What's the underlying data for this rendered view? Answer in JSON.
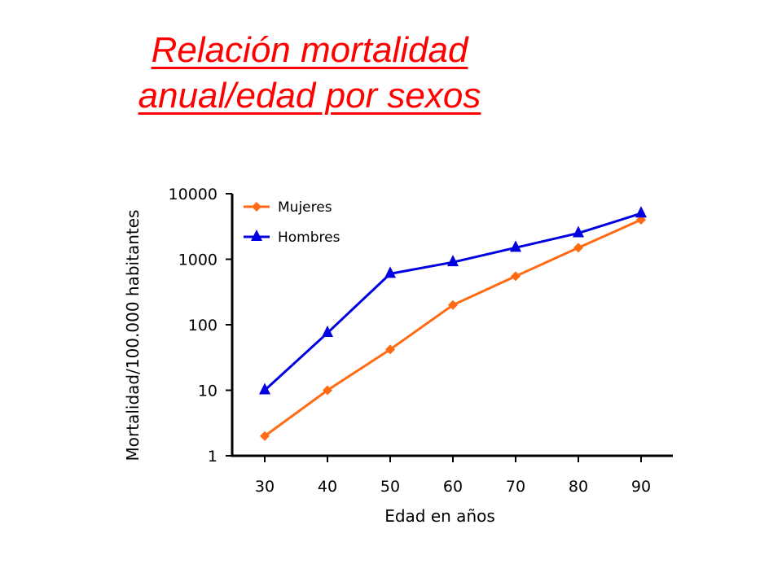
{
  "title": {
    "line1": "Relación mortalidad",
    "line2": "anual/edad por sexos",
    "color": "#ff0000"
  },
  "chart_data": {
    "type": "line",
    "xlabel": "Edad en años",
    "ylabel": "Mortalidad/100.000 habitantes",
    "x": [
      30,
      40,
      50,
      60,
      70,
      80,
      90
    ],
    "y_scale": "log",
    "ylim": [
      1,
      10000
    ],
    "yticks": [
      1,
      10,
      100,
      1000,
      10000
    ],
    "grid": false,
    "legend_position": "top-left",
    "series": [
      {
        "name": "Mujeres",
        "color": "#ff6a13",
        "marker": "diamond",
        "values": [
          2,
          10,
          42,
          200,
          550,
          1500,
          4000
        ]
      },
      {
        "name": "Hombres",
        "color": "#0000e0",
        "marker": "triangle",
        "values": [
          10,
          75,
          600,
          900,
          1500,
          2500,
          5000
        ]
      }
    ]
  }
}
